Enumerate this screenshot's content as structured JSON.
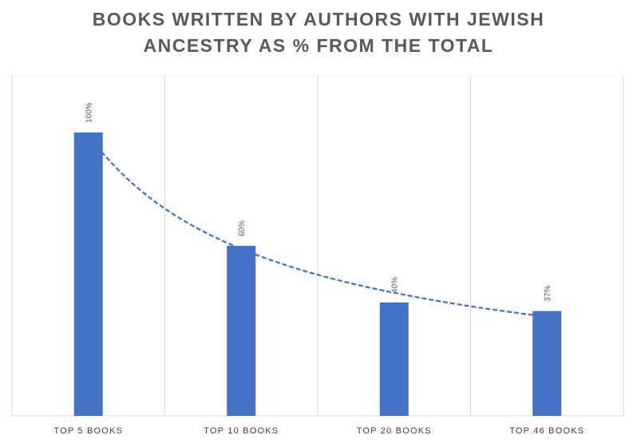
{
  "chart_data": {
    "type": "bar",
    "title_lines": [
      "BOOKS WRITTEN BY AUTHORS WITH JEWISH",
      "ANCESTRY AS % FROM THE TOTAL"
    ],
    "categories": [
      "TOP 5 BOOKS",
      "TOP 10 BOOKS",
      "TOP 20 BOOKS",
      "TOP 46 BOOKS"
    ],
    "values": [
      100,
      60,
      40,
      37
    ],
    "data_labels": [
      "100%",
      "60%",
      "40%",
      "37%"
    ],
    "ylim": [
      0,
      120
    ],
    "xlabel": "",
    "ylabel": "",
    "trendline": {
      "type": "power",
      "style": "dashed"
    },
    "grid": "vertical category separators",
    "colors": {
      "bar": "#4472C4",
      "trend": "#4472C4",
      "grid": "#D9D9D9",
      "title": "#595959"
    }
  }
}
